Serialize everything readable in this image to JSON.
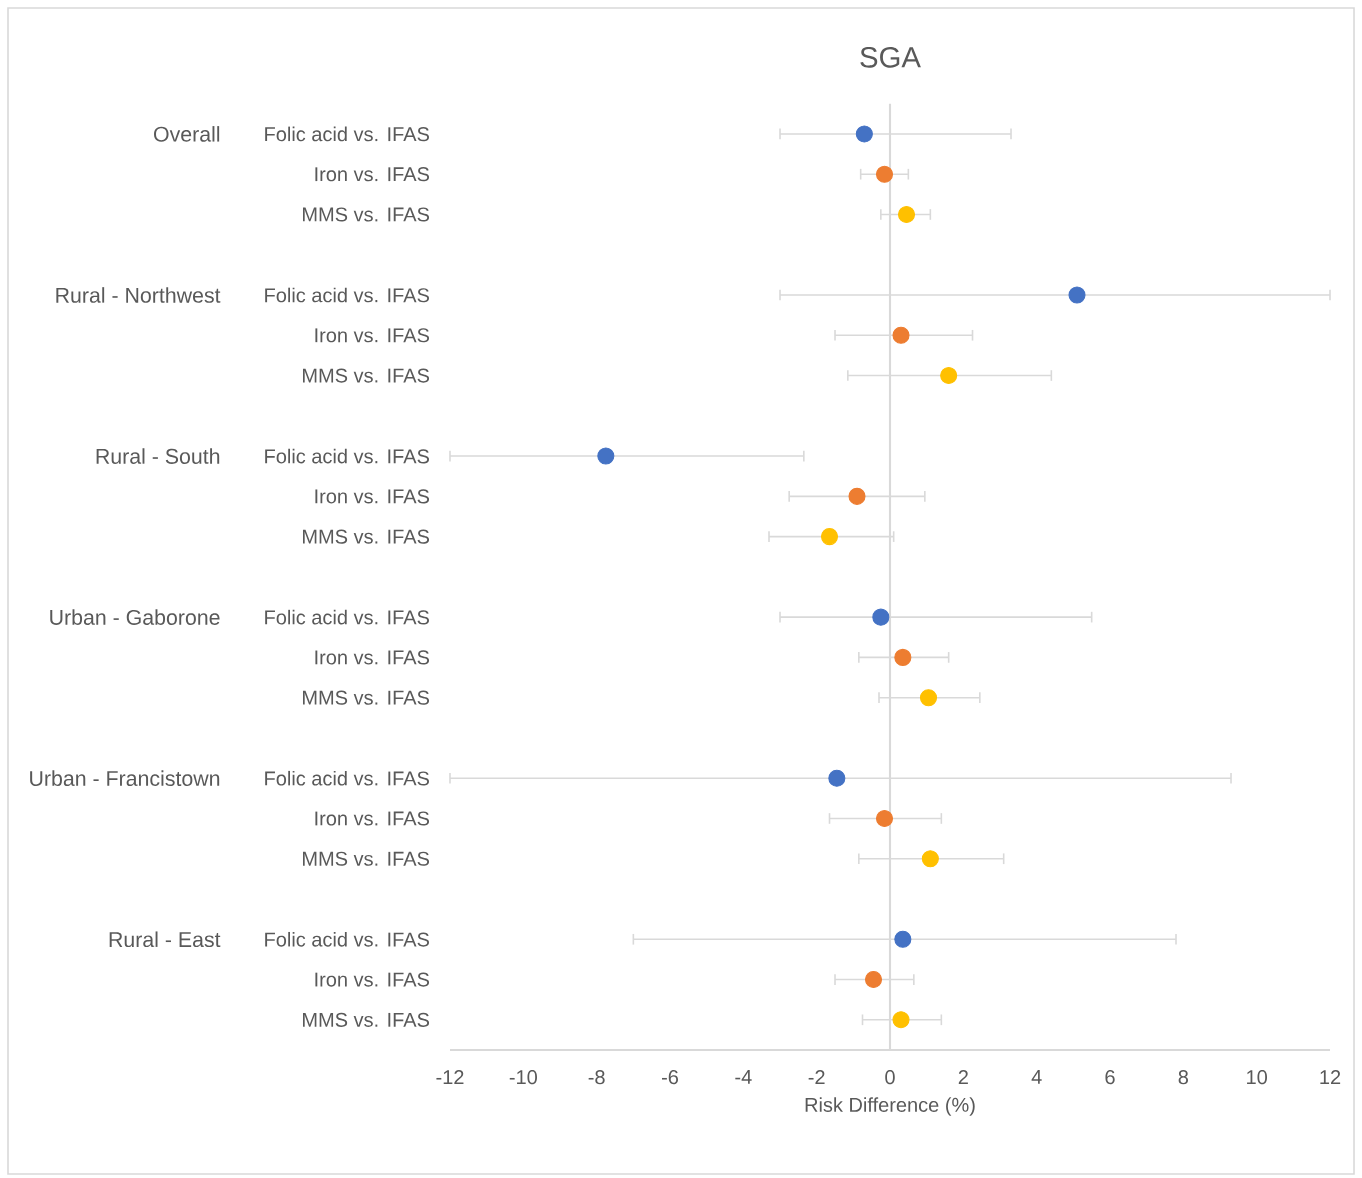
{
  "chart_data": {
    "type": "scatter",
    "title": "SGA",
    "xlabel": "Risk Difference (%)",
    "orientation": "horizontal",
    "categories": [
      "Folic acid vs. IFAS",
      "Iron vs. IFAS",
      "MMS vs. IFAS",
      null,
      "Folic acid vs. IFAS",
      "Iron vs. IFAS",
      "MMS vs. IFAS",
      null,
      "Folic acid vs. IFAS",
      "Iron vs. IFAS",
      "MMS vs. IFAS",
      null,
      "Folic acid vs. IFAS",
      "Iron vs. IFAS",
      "MMS vs. IFAS",
      null,
      "Folic acid vs. IFAS",
      "Iron vs. IFAS",
      "MMS vs. IFAS",
      null,
      "Folic acid vs. IFAS",
      "Iron vs. IFAS",
      "MMS vs. IFAS"
    ],
    "values": [
      -0.7,
      -0.15,
      0.45,
      null,
      5.1,
      0.3,
      1.6,
      null,
      -7.75,
      -0.9,
      -1.65,
      null,
      -0.25,
      0.35,
      1.05,
      null,
      -1.45,
      -0.15,
      1.1,
      null,
      0.35,
      -0.45,
      0.3
    ],
    "colors": [
      "#4472c4",
      "#ed7d31",
      "#ffc000",
      null,
      "#4472c4",
      "#ed7d31",
      "#ffc000",
      null,
      "#4472c4",
      "#ed7d31",
      "#ffc000",
      null,
      "#4472c4",
      "#ed7d31",
      "#ffc000",
      null,
      "#4472c4",
      "#ed7d31",
      "#ffc000",
      null,
      "#4472c4",
      "#ed7d31",
      "#ffc000"
    ],
    "errors": [
      [
        -3.0,
        3.3
      ],
      [
        -0.8,
        0.5
      ],
      [
        -0.25,
        1.1
      ],
      null,
      [
        -3.0,
        12
      ],
      [
        -1.5,
        2.25
      ],
      [
        -1.15,
        4.4
      ],
      null,
      [
        -12,
        -2.35
      ],
      [
        -2.75,
        0.95
      ],
      [
        -3.3,
        0.1
      ],
      null,
      [
        -3.0,
        5.5
      ],
      [
        -0.85,
        1.6
      ],
      [
        -0.3,
        2.45
      ],
      null,
      [
        -12,
        9.3
      ],
      [
        -1.65,
        1.4
      ],
      [
        -0.85,
        3.1
      ],
      null,
      [
        -7.0,
        7.8
      ],
      [
        -1.5,
        0.65
      ],
      [
        -0.75,
        1.4
      ]
    ],
    "xlim": [
      -12,
      12
    ],
    "xticks": [
      -12,
      -10,
      -8,
      -6,
      -4,
      -2,
      0,
      2,
      4,
      6,
      8,
      10,
      12
    ],
    "annotations": [
      "Overall",
      "Rural - Northwest",
      "Rural - South",
      "Urban  - Gaborone",
      "Urban - Francistown",
      "Rural - East"
    ]
  }
}
